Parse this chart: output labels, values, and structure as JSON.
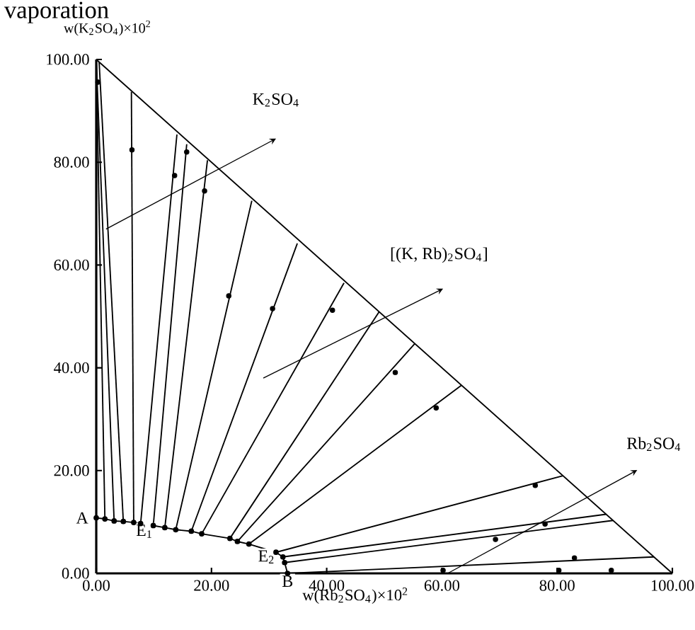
{
  "chart_data": {
    "type": "line",
    "title": "vaporation",
    "xlabel": "w(Rb$_{2}$SO$_{4}$)×10$^{2}$",
    "ylabel": "w(K$_{2}$SO$_{4}$)×10$^{2}$",
    "xlim": [
      0,
      100
    ],
    "ylim": [
      0,
      100
    ],
    "xticks": [
      {
        "value": 0,
        "label": "0.00"
      },
      {
        "value": 20,
        "label": "20.00"
      },
      {
        "value": 40,
        "label": "40.00"
      },
      {
        "value": 60,
        "label": "60.00"
      },
      {
        "value": 80,
        "label": "80.00"
      },
      {
        "value": 100,
        "label": "100.00"
      }
    ],
    "yticks": [
      {
        "value": 0,
        "label": "0.00"
      },
      {
        "value": 20,
        "label": "20.00"
      },
      {
        "value": 40,
        "label": "40.00"
      },
      {
        "value": 60,
        "label": "60.00"
      },
      {
        "value": 80,
        "label": "80.00"
      },
      {
        "value": 100,
        "label": "100.00"
      }
    ],
    "grid": false,
    "series": [
      {
        "color": "#000000",
        "marker": "circle",
        "x": [
          0,
          1.5,
          3.1,
          4.7,
          6.5,
          7.7,
          9.9,
          11.9,
          13.8,
          16.5,
          18.3,
          23.2,
          24.5,
          26.5,
          31.2,
          32.4,
          32.7,
          33.2
        ],
        "values": [
          10.8,
          10.6,
          10.2,
          10.1,
          9.9,
          9.7,
          9.3,
          8.9,
          8.5,
          8.2,
          7.7,
          6.8,
          6.2,
          5.7,
          4.1,
          3.2,
          2.1,
          0
        ]
      },
      {
        "color": "#000000",
        "x": [
          0,
          100
        ],
        "values": [
          100,
          0
        ]
      },
      {
        "color": "#000000",
        "x": [
          1.5,
          0
        ],
        "values": [
          10.6,
          100
        ]
      },
      {
        "color": "#000000",
        "x": [
          3.1,
          0
        ],
        "values": [
          10.2,
          100
        ]
      },
      {
        "color": "#000000",
        "x": [
          4.7,
          0.5
        ],
        "values": [
          10.1,
          99.5
        ]
      },
      {
        "color": "#000000",
        "x": [
          6.5,
          6.1
        ],
        "values": [
          9.9,
          93.7
        ]
      },
      {
        "color": "#000000",
        "x": [
          7.7,
          14.0
        ],
        "values": [
          9.7,
          85.4
        ]
      },
      {
        "color": "#000000",
        "x": [
          9.9,
          15.7
        ],
        "values": [
          9.3,
          83.5
        ]
      },
      {
        "color": "#000000",
        "x": [
          11.9,
          19.3
        ],
        "values": [
          8.9,
          80.4
        ]
      },
      {
        "color": "#000000",
        "x": [
          13.8,
          27.0
        ],
        "values": [
          8.5,
          72.5
        ]
      },
      {
        "color": "#000000",
        "x": [
          16.5,
          34.9
        ],
        "values": [
          8.2,
          64.2
        ]
      },
      {
        "color": "#000000",
        "x": [
          18.3,
          43.0
        ],
        "values": [
          7.7,
          56.5
        ]
      },
      {
        "color": "#000000",
        "x": [
          23.2,
          49.1
        ],
        "values": [
          6.8,
          50.9
        ]
      },
      {
        "color": "#000000",
        "x": [
          24.5,
          55.3
        ],
        "values": [
          6.2,
          44.7
        ]
      },
      {
        "color": "#000000",
        "x": [
          26.5,
          63.4
        ],
        "values": [
          5.7,
          36.6
        ]
      },
      {
        "color": "#000000",
        "x": [
          31.2,
          81.0
        ],
        "values": [
          4.1,
          19.0
        ]
      },
      {
        "color": "#000000",
        "x": [
          32.4,
          88.5
        ],
        "values": [
          3.2,
          11.5
        ]
      },
      {
        "color": "#000000",
        "x": [
          32.7,
          89.7
        ],
        "values": [
          2.1,
          10.3
        ]
      },
      {
        "color": "#000000",
        "x": [
          33.2,
          96.8
        ],
        "values": [
          0,
          3.2
        ]
      },
      {
        "color": "#000000",
        "type": "scatter",
        "marker": "circle",
        "x": [
          0.3,
          6.2,
          13.6,
          15.7,
          18.8,
          23.0,
          30.6,
          41.0,
          51.9,
          59.0,
          76.2,
          77.9,
          69.3,
          83.0,
          60.2,
          80.3,
          89.4
        ],
        "values": [
          95.6,
          82.4,
          77.4,
          82.0,
          74.4,
          54.0,
          51.5,
          51.2,
          39.1,
          32.2,
          17.1,
          9.6,
          6.6,
          3.0,
          0.6,
          0.6,
          0.6
        ]
      }
    ],
    "annotations": [
      {
        "text": "A",
        "x": 0,
        "y": 10.8
      },
      {
        "text": "E$_{1}$",
        "x": 6.5,
        "y": 9.9
      },
      {
        "text": "E$_{2}$",
        "x": 32.4,
        "y": 3.2
      },
      {
        "text": "B",
        "x": 33.2,
        "y": 0
      },
      "K$_{2}$SO$_{4}$",
      "[(K, Rb)$_{2}$SO$_{4}$]",
      "Rb$_{2}$SO$_{4}$"
    ]
  }
}
